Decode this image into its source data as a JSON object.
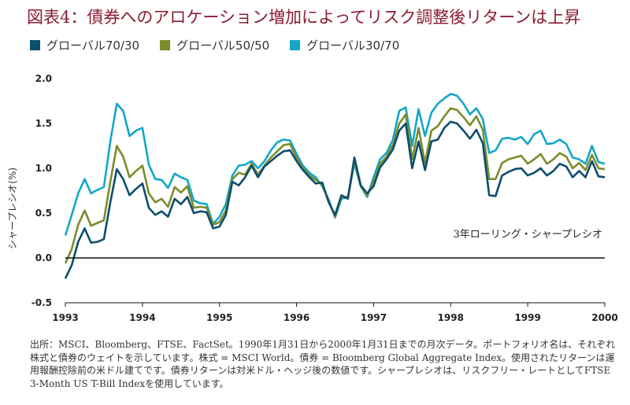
{
  "title": "図表4：債券へのアロケーション増加によってリスク調整後リターンは上昇",
  "legend": [
    {
      "label": "グローバル70/30",
      "color": "#0d4d6e"
    },
    {
      "label": "グローバル50/50",
      "color": "#7b8c2a"
    },
    {
      "label": "グローバル30/70",
      "color": "#12a7c9"
    }
  ],
  "annotation": "3年ローリング・シャープレシオ",
  "source": "出所：MSCI、Bloomberg、FTSE、FactSet。1990年1月31日から2000年1月31日までの月次データ。ポートフォリオ名は、それぞれ株式と債券のウェイトを示しています。株式 = MSCI World。債券 = Bloomberg Global Aggregate Index。使用されたリターンは運用報酬控除前の米ドル建てです。債券リターンは対米ドル・ヘッジ後の数値です。シャープレシオは、リスクフリー・レートとしてFTSE 3-Month US T-Bill Indexを使用しています。",
  "chart_data": {
    "type": "line",
    "title": "図表4：債券へのアロケーション増加によってリスク調整後リターンは上昇",
    "xlabel": "",
    "ylabel": "シャープレシオ(%)",
    "xlim": [
      1993,
      2000
    ],
    "ylim": [
      -0.5,
      2.0
    ],
    "y_ticks": [
      "-0.5",
      "0.0",
      "0.5",
      "1.0",
      "1.5",
      "2.0"
    ],
    "x_ticks": [
      "1993",
      "1994",
      "1995",
      "1996",
      "1997",
      "1998",
      "1999",
      "2000"
    ],
    "grid": false,
    "legend_position": "top-left",
    "series": [
      {
        "name": "グローバル70/30",
        "color": "#0d4d6e",
        "x": [
          1993.0,
          1993.083,
          1993.167,
          1993.25,
          1993.333,
          1993.417,
          1993.5,
          1993.583,
          1993.667,
          1993.75,
          1993.833,
          1993.917,
          1994.0,
          1994.083,
          1994.167,
          1994.25,
          1994.333,
          1994.417,
          1994.5,
          1994.583,
          1994.667,
          1994.75,
          1994.833,
          1994.917,
          1995.0,
          1995.083,
          1995.167,
          1995.25,
          1995.333,
          1995.417,
          1995.5,
          1995.583,
          1995.667,
          1995.75,
          1995.833,
          1995.917,
          1996.0,
          1996.083,
          1996.167,
          1996.25,
          1996.333,
          1996.417,
          1996.5,
          1996.583,
          1996.667,
          1996.75,
          1996.833,
          1996.917,
          1997.0,
          1997.083,
          1997.167,
          1997.25,
          1997.333,
          1997.417,
          1997.5,
          1997.583,
          1997.667,
          1997.75,
          1997.833,
          1997.917,
          1998.0,
          1998.083,
          1998.167,
          1998.25,
          1998.333,
          1998.417,
          1998.5,
          1998.583,
          1998.667,
          1998.75,
          1998.833,
          1998.917,
          1999.0,
          1999.083,
          1999.167,
          1999.25,
          1999.333,
          1999.417,
          1999.5,
          1999.583,
          1999.667,
          1999.75,
          1999.833,
          1999.917,
          2000.0
        ],
        "values": [
          -0.23,
          -0.08,
          0.18,
          0.33,
          0.17,
          0.18,
          0.21,
          0.62,
          0.99,
          0.88,
          0.7,
          0.77,
          0.83,
          0.56,
          0.48,
          0.52,
          0.46,
          0.66,
          0.6,
          0.68,
          0.5,
          0.52,
          0.51,
          0.33,
          0.35,
          0.48,
          0.85,
          0.81,
          0.9,
          1.03,
          0.9,
          1.02,
          1.08,
          1.14,
          1.19,
          1.2,
          1.08,
          0.98,
          0.9,
          0.83,
          0.84,
          0.62,
          0.48,
          0.7,
          0.66,
          1.12,
          0.81,
          0.72,
          0.8,
          1.01,
          1.1,
          1.21,
          1.42,
          1.5,
          1.0,
          1.3,
          0.98,
          1.3,
          1.32,
          1.45,
          1.52,
          1.5,
          1.42,
          1.33,
          1.43,
          1.28,
          0.7,
          0.69,
          0.92,
          0.96,
          0.99,
          1.0,
          0.92,
          0.95,
          1.0,
          0.92,
          0.97,
          1.05,
          1.02,
          0.9,
          0.97,
          0.9,
          1.08,
          0.91,
          0.9
        ]
      },
      {
        "name": "グローバル50/50",
        "color": "#7b8c2a",
        "x": [
          1993.0,
          1993.083,
          1993.167,
          1993.25,
          1993.333,
          1993.417,
          1993.5,
          1993.583,
          1993.667,
          1993.75,
          1993.833,
          1993.917,
          1994.0,
          1994.083,
          1994.167,
          1994.25,
          1994.333,
          1994.417,
          1994.5,
          1994.583,
          1994.667,
          1994.75,
          1994.833,
          1994.917,
          1995.0,
          1995.083,
          1995.167,
          1995.25,
          1995.333,
          1995.417,
          1995.5,
          1995.583,
          1995.667,
          1995.75,
          1995.833,
          1995.917,
          1996.0,
          1996.083,
          1996.167,
          1996.25,
          1996.333,
          1996.417,
          1996.5,
          1996.583,
          1996.667,
          1996.75,
          1996.833,
          1996.917,
          1997.0,
          1997.083,
          1997.167,
          1997.25,
          1997.333,
          1997.417,
          1997.5,
          1997.583,
          1997.667,
          1997.75,
          1997.833,
          1997.917,
          1998.0,
          1998.083,
          1998.167,
          1998.25,
          1998.333,
          1998.417,
          1998.5,
          1998.583,
          1998.667,
          1998.75,
          1998.833,
          1998.917,
          1999.0,
          1999.083,
          1999.167,
          1999.25,
          1999.333,
          1999.417,
          1999.5,
          1999.583,
          1999.667,
          1999.75,
          1999.833,
          1999.917,
          2000.0
        ],
        "values": [
          -0.06,
          0.1,
          0.37,
          0.53,
          0.36,
          0.39,
          0.42,
          0.85,
          1.25,
          1.13,
          0.9,
          0.97,
          1.03,
          0.72,
          0.62,
          0.66,
          0.57,
          0.79,
          0.73,
          0.8,
          0.56,
          0.57,
          0.56,
          0.37,
          0.4,
          0.53,
          0.88,
          0.95,
          0.93,
          1.05,
          0.93,
          1.03,
          1.12,
          1.19,
          1.26,
          1.27,
          1.12,
          1.0,
          0.92,
          0.87,
          0.82,
          0.63,
          0.46,
          0.68,
          0.68,
          1.08,
          0.8,
          0.7,
          0.85,
          1.05,
          1.13,
          1.26,
          1.5,
          1.6,
          1.1,
          1.45,
          1.06,
          1.42,
          1.47,
          1.58,
          1.67,
          1.65,
          1.57,
          1.48,
          1.58,
          1.43,
          0.88,
          0.88,
          1.06,
          1.1,
          1.12,
          1.14,
          1.05,
          1.1,
          1.16,
          1.05,
          1.1,
          1.17,
          1.13,
          1.0,
          1.06,
          0.98,
          1.15,
          1.0,
          0.99
        ]
      },
      {
        "name": "グローバル30/70",
        "color": "#12a7c9",
        "x": [
          1993.0,
          1993.083,
          1993.167,
          1993.25,
          1993.333,
          1993.417,
          1993.5,
          1993.583,
          1993.667,
          1993.75,
          1993.833,
          1993.917,
          1994.0,
          1994.083,
          1994.167,
          1994.25,
          1994.333,
          1994.417,
          1994.5,
          1994.583,
          1994.667,
          1994.75,
          1994.833,
          1994.917,
          1995.0,
          1995.083,
          1995.167,
          1995.25,
          1995.333,
          1995.417,
          1995.5,
          1995.583,
          1995.667,
          1995.75,
          1995.833,
          1995.917,
          1996.0,
          1996.083,
          1996.167,
          1996.25,
          1996.333,
          1996.417,
          1996.5,
          1996.583,
          1996.667,
          1996.75,
          1996.833,
          1996.917,
          1997.0,
          1997.083,
          1997.167,
          1997.25,
          1997.333,
          1997.417,
          1997.5,
          1997.583,
          1997.667,
          1997.75,
          1997.833,
          1997.917,
          1998.0,
          1998.083,
          1998.167,
          1998.25,
          1998.333,
          1998.417,
          1998.5,
          1998.583,
          1998.667,
          1998.75,
          1998.833,
          1998.917,
          1999.0,
          1999.083,
          1999.167,
          1999.25,
          1999.333,
          1999.417,
          1999.5,
          1999.583,
          1999.667,
          1999.75,
          1999.833,
          1999.917,
          2000.0
        ],
        "values": [
          0.25,
          0.48,
          0.72,
          0.88,
          0.72,
          0.76,
          0.79,
          1.3,
          1.72,
          1.64,
          1.36,
          1.42,
          1.45,
          1.04,
          0.88,
          0.87,
          0.78,
          0.94,
          0.9,
          0.87,
          0.64,
          0.61,
          0.6,
          0.38,
          0.46,
          0.6,
          0.92,
          1.03,
          1.04,
          1.08,
          1.0,
          1.08,
          1.2,
          1.29,
          1.32,
          1.31,
          1.16,
          1.03,
          0.95,
          0.9,
          0.8,
          0.65,
          0.45,
          0.66,
          0.68,
          1.05,
          0.8,
          0.68,
          0.9,
          1.1,
          1.17,
          1.32,
          1.64,
          1.68,
          1.25,
          1.66,
          1.36,
          1.62,
          1.72,
          1.78,
          1.83,
          1.81,
          1.72,
          1.6,
          1.67,
          1.55,
          1.17,
          1.2,
          1.33,
          1.34,
          1.32,
          1.35,
          1.27,
          1.38,
          1.42,
          1.27,
          1.28,
          1.32,
          1.27,
          1.12,
          1.1,
          1.05,
          1.25,
          1.07,
          1.05
        ]
      }
    ]
  }
}
